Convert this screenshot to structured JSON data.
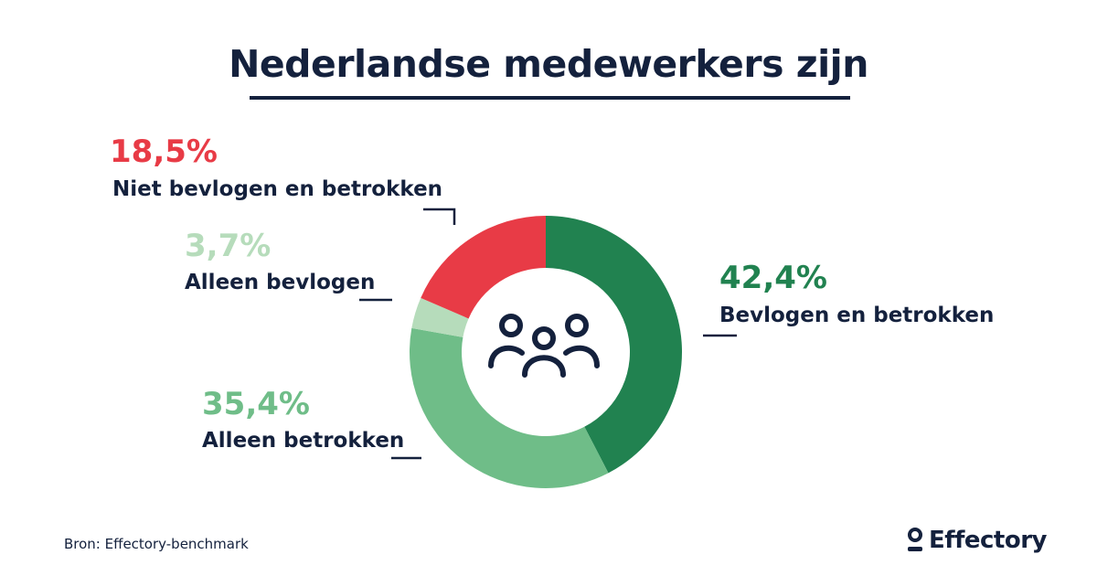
{
  "title": "Nederlandse medewerkers zijn",
  "chart_data": {
    "type": "donut",
    "title": "Nederlandse medewerkers zijn",
    "slices": [
      {
        "label": "Bevlogen en betrokken",
        "value": 42.4,
        "value_text": "42,4%",
        "color": "#218250"
      },
      {
        "label": "Alleen betrokken",
        "value": 35.4,
        "value_text": "35,4%",
        "color": "#6fbd88"
      },
      {
        "label": "Alleen bevlogen",
        "value": 3.7,
        "value_text": "3,7%",
        "color": "#b6dcbb"
      },
      {
        "label": "Niet bevlogen en betrokken",
        "value": 18.5,
        "value_text": "18,5%",
        "color": "#e83b46"
      }
    ],
    "center_icon": "people-group-icon"
  },
  "source": "Bron: Effectory-benchmark",
  "logo": {
    "text": "Effectory",
    "icon": "effectory-logo-icon"
  },
  "colors": {
    "text": "#14213d"
  }
}
